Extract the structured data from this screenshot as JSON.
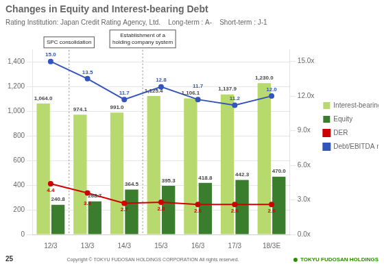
{
  "chart_data": {
    "type": "bar",
    "title": "Changes in Equity and Interest-bearing Debt",
    "subtitle": "Rating Institution: Japan Credit Rating Agency, Ltd.    Long-term : A-    Short-term : J-1",
    "categories": [
      "12/3",
      "13/3",
      "14/3",
      "15/3",
      "16/3",
      "17/3",
      "18/3E"
    ],
    "series": [
      {
        "name": "Interest-bearing Debt",
        "color": "#b8d96e",
        "values": [
          1064.0,
          974.1,
          991.0,
          1125.4,
          1106.1,
          1137.9,
          1230.0
        ],
        "value_labels": [
          "1,064.0",
          "974.1",
          "991.0",
          "1,125.4",
          "1,106.1",
          "1,137.9",
          "1,230.0"
        ]
      },
      {
        "name": "Equity",
        "color": "#3a7d2c",
        "values": [
          240.8,
          268.7,
          364.5,
          395.3,
          418.8,
          442.3,
          470.0
        ],
        "value_labels": [
          "240.8",
          "268.7",
          "364.5",
          "395.3",
          "418.8",
          "442.3",
          "470.0"
        ]
      },
      {
        "name": "DER",
        "type": "line",
        "axis": "y2",
        "color": "#cc0000",
        "marker": "circle",
        "values": [
          4.4,
          3.6,
          2.7,
          2.8,
          2.6,
          2.6,
          2.6
        ]
      },
      {
        "name": "Debt/EBITDA ratio",
        "type": "line",
        "axis": "y2",
        "color": "#3355bb",
        "marker": "circle",
        "values": [
          15.0,
          13.5,
          11.7,
          12.8,
          11.7,
          11.2,
          12.0
        ],
        "value_labels": [
          "15.0",
          "13.5",
          "11.7",
          "12.8",
          "11.7",
          "11.2",
          "12.0"
        ]
      }
    ],
    "ylim": [
      0,
      1500
    ],
    "yticks": [
      0,
      200,
      400,
      600,
      800,
      {
        "value": 1000,
        "label": "1,000"
      },
      {
        "value": 1200,
        "label": "1,200"
      },
      {
        "value": 1400,
        "label": "1,400"
      }
    ],
    "y2lim": [
      0.0,
      16.0
    ],
    "y2ticks": [
      {
        "value": 0.0,
        "label": "0.0x"
      },
      {
        "value": 3.0,
        "label": "3.0x"
      },
      {
        "value": 6.0,
        "label": "6.0x"
      },
      {
        "value": 9.0,
        "label": "9.0x"
      },
      {
        "value": 12.0,
        "label": "12.0x"
      },
      {
        "value": 15.0,
        "label": "15.0x"
      }
    ],
    "grid": true,
    "legend": "right",
    "data_labels": true,
    "annotations": [
      {
        "text": "SPC consolidation",
        "between": [
          "12/3",
          "13/3"
        ]
      },
      {
        "text": "Establishment of a\nholding company system",
        "between": [
          "14/3",
          "15/3"
        ]
      }
    ],
    "footer": [
      "25",
      "Copyright © TOKYU FUDOSAN HOLDINGS CORPORATION All rights reserved.",
      "TOKYU FUDOSAN HOLDINGS"
    ]
  }
}
